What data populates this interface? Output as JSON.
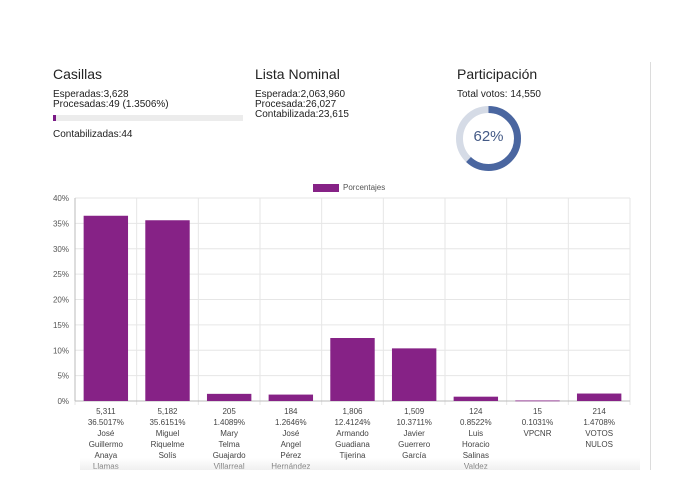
{
  "casillas": {
    "title": "Casillas",
    "esperadas": "Esperadas:3,628",
    "procesadas": "Procesadas:49 (1.3506%)",
    "progress_fraction": 0.013506,
    "contabilizadas": "Contabilizadas:44"
  },
  "lista_nominal": {
    "title": "Lista Nominal",
    "esperada": "Esperada:2,063,960",
    "procesada": "Procesada:26,027",
    "contabilizada": "Contabilizada:23,615"
  },
  "participacion": {
    "title": "Participación",
    "total_votos": "Total votos: 14,550",
    "percent_label": "62%",
    "percent_value": 62
  },
  "colors": {
    "bar": "#862286",
    "progress": "#7a1a86",
    "gauge_fill": "#4a66a0",
    "gauge_track": "#d5dbe6"
  },
  "chart_data": {
    "type": "bar",
    "legend": "Porcentajes",
    "legend_position": "top",
    "ylim": [
      0,
      40
    ],
    "yticks": [
      "0%",
      "5%",
      "10%",
      "15%",
      "20%",
      "25%",
      "30%",
      "35%",
      "40%"
    ],
    "grid": true,
    "values": [
      36.5017,
      35.6151,
      1.4089,
      1.2646,
      12.4124,
      10.3711,
      0.8522,
      0.1031,
      1.4708
    ],
    "categories": [
      {
        "votes": "5,311",
        "pct": "36.5017%",
        "name": [
          "José",
          "Guillermo",
          "Anaya",
          "Llamas"
        ]
      },
      {
        "votes": "5,182",
        "pct": "35.6151%",
        "name": [
          "Miguel",
          "Riquelme",
          "Solís"
        ]
      },
      {
        "votes": "205",
        "pct": "1.4089%",
        "name": [
          "Mary",
          "Telma",
          "Guajardo",
          "Villarreal"
        ]
      },
      {
        "votes": "184",
        "pct": "1.2646%",
        "name": [
          "José",
          "Angel",
          "Pérez",
          "Hernández"
        ]
      },
      {
        "votes": "1,806",
        "pct": "12.4124%",
        "name": [
          "Armando",
          "Guadiana",
          "Tijerina"
        ]
      },
      {
        "votes": "1,509",
        "pct": "10.3711%",
        "name": [
          "Javier",
          "Guerrero",
          "García"
        ]
      },
      {
        "votes": "124",
        "pct": "0.8522%",
        "name": [
          "Luis",
          "Horacio",
          "Salinas",
          "Valdez"
        ]
      },
      {
        "votes": "15",
        "pct": "0.1031%",
        "name": [
          "VPCNR"
        ]
      },
      {
        "votes": "214",
        "pct": "1.4708%",
        "name": [
          "VOTOS",
          "NULOS"
        ]
      }
    ]
  }
}
